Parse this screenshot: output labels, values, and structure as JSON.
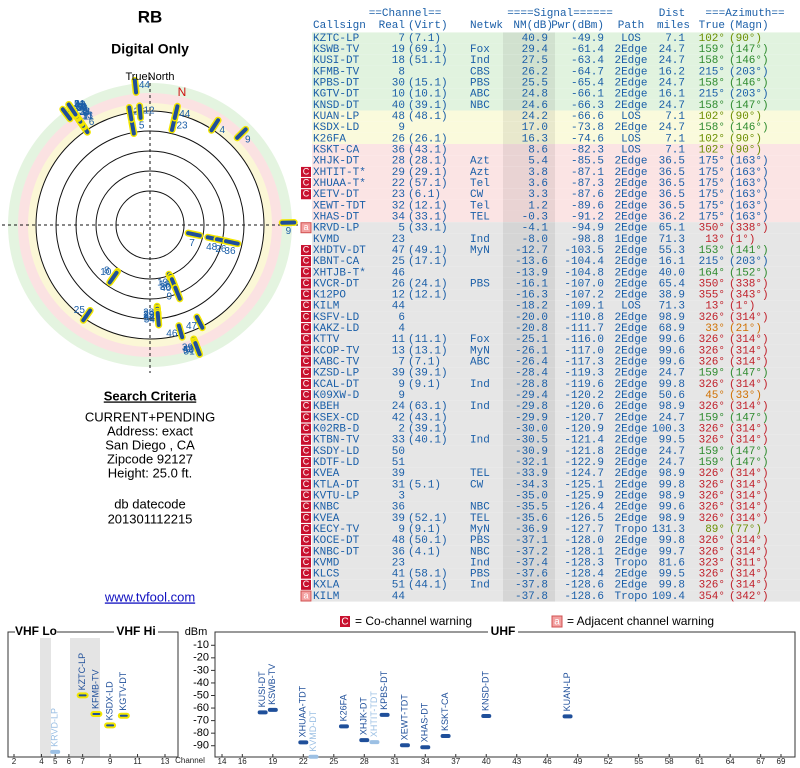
{
  "header": {
    "title": "RB",
    "subtitle": "Digital Only",
    "north_label": "TrueNorth",
    "north_mark": "N"
  },
  "table": {
    "header_groups": [
      "==Channel==",
      "====Signal======",
      "Dist",
      "===Azimuth=="
    ],
    "columns": [
      "Callsign",
      "Real",
      "(Virt)",
      "Netwk",
      "NM(dB)",
      "Pwr(dBm)",
      "Path",
      "miles",
      "True",
      "(Magn)"
    ],
    "rows": [
      [
        null,
        "KZTC-LP",
        "7",
        "(7.1)",
        null,
        "40.9",
        "-49.9",
        "LOS",
        "7.1",
        "102°",
        "(90°)"
      ],
      [
        null,
        "KSWB-TV",
        "19",
        "(69.1)",
        "Fox",
        "29.4",
        "-61.4",
        "2Edge",
        "24.7",
        "159°",
        "(147°)"
      ],
      [
        null,
        "KUSI-DT",
        "18",
        "(51.1)",
        "Ind",
        "27.5",
        "-63.4",
        "2Edge",
        "24.7",
        "158°",
        "(146°)"
      ],
      [
        null,
        "KFMB-TV",
        "8",
        null,
        "CBS",
        "26.2",
        "-64.7",
        "2Edge",
        "16.2",
        "215°",
        "(203°)"
      ],
      [
        null,
        "KPBS-DT",
        "30",
        "(15.1)",
        "PBS",
        "25.5",
        "-65.4",
        "2Edge",
        "24.7",
        "158°",
        "(146°)"
      ],
      [
        null,
        "KGTV-DT",
        "10",
        "(10.1)",
        "ABC",
        "24.8",
        "-66.1",
        "2Edge",
        "16.1",
        "215°",
        "(203°)"
      ],
      [
        null,
        "KNSD-DT",
        "40",
        "(39.1)",
        "NBC",
        "24.6",
        "-66.3",
        "2Edge",
        "24.7",
        "158°",
        "(147°)"
      ],
      [
        null,
        "KUAN-LP",
        "48",
        "(48.1)",
        null,
        "24.2",
        "-66.6",
        "LOS",
        "7.1",
        "102°",
        "(90°)"
      ],
      [
        null,
        "KSDX-LD",
        "9",
        null,
        null,
        "17.0",
        "-73.8",
        "2Edge",
        "24.7",
        "158°",
        "(146°)"
      ],
      [
        null,
        "K26FA",
        "26",
        "(26.1)",
        null,
        "16.3",
        "-74.6",
        "LOS",
        "7.1",
        "102°",
        "(90°)"
      ],
      [
        null,
        "KSKT-CA",
        "36",
        "(43.1)",
        null,
        "8.6",
        "-82.3",
        "LOS",
        "7.1",
        "102°",
        "(90°)"
      ],
      [
        null,
        "XHJK-DT",
        "28",
        "(28.1)",
        "Azt",
        "5.4",
        "-85.5",
        "2Edge",
        "36.5",
        "175°",
        "(163°)"
      ],
      [
        "C",
        "XHTIT-T*",
        "29",
        "(29.1)",
        "Azt",
        "3.8",
        "-87.1",
        "2Edge",
        "36.5",
        "175°",
        "(163°)"
      ],
      [
        "C",
        "XHUAA-T*",
        "22",
        "(57.1)",
        "Tel",
        "3.6",
        "-87.3",
        "2Edge",
        "36.5",
        "175°",
        "(163°)"
      ],
      [
        "C",
        "XETV-DT",
        "23",
        "(6.1)",
        "CW",
        "3.3",
        "-87.6",
        "2Edge",
        "36.5",
        "175°",
        "(163°)"
      ],
      [
        null,
        "XEWT-TDT",
        "32",
        "(12.1)",
        "Tel",
        "1.2",
        "-89.6",
        "2Edge",
        "36.5",
        "175°",
        "(163°)"
      ],
      [
        null,
        "XHAS-DT",
        "34",
        "(33.1)",
        "TEL",
        "-0.3",
        "-91.2",
        "2Edge",
        "36.2",
        "175°",
        "(163°)"
      ],
      [
        "a",
        "KRVD-LP",
        "5",
        "(33.1)",
        null,
        "-4.1",
        "-94.9",
        "2Edge",
        "65.1",
        "350°",
        "(338°)"
      ],
      [
        null,
        "KVMD",
        "23",
        null,
        "Ind",
        "-8.0",
        "-98.8",
        "1Edge",
        "71.3",
        "13°",
        "(1°)"
      ],
      [
        "C",
        "XHDTV-DT",
        "47",
        "(49.1)",
        "MyN",
        "-12.7",
        "-103.5",
        "2Edge",
        "55.3",
        "153°",
        "(141°)"
      ],
      [
        "C",
        "KBNT-CA",
        "25",
        "(17.1)",
        null,
        "-13.6",
        "-104.4",
        "2Edge",
        "16.1",
        "215°",
        "(203°)"
      ],
      [
        "C",
        "XHTJB-T*",
        "46",
        null,
        null,
        "-13.9",
        "-104.8",
        "2Edge",
        "40.0",
        "164°",
        "(152°)"
      ],
      [
        "C",
        "KVCR-DT",
        "26",
        "(24.1)",
        "PBS",
        "-16.1",
        "-107.0",
        "2Edge",
        "65.4",
        "350°",
        "(338°)"
      ],
      [
        "C",
        "K12PO",
        "12",
        "(12.1)",
        null,
        "-16.3",
        "-107.2",
        "2Edge",
        "38.9",
        "355°",
        "(343°)"
      ],
      [
        "C",
        "KILM",
        "44",
        null,
        null,
        "-18.2",
        "-109.1",
        "LOS",
        "71.3",
        "13°",
        "(1°)"
      ],
      [
        "C",
        "KSFV-LD",
        "6",
        null,
        null,
        "-20.0",
        "-110.8",
        "2Edge",
        "98.9",
        "326°",
        "(314°)"
      ],
      [
        "C",
        "KAKZ-LD",
        "4",
        null,
        null,
        "-20.8",
        "-111.7",
        "2Edge",
        "68.9",
        "33°",
        "(21°)"
      ],
      [
        "C",
        "KTTV",
        "11",
        "(11.1)",
        "Fox",
        "-25.1",
        "-116.0",
        "2Edge",
        "99.6",
        "326°",
        "(314°)"
      ],
      [
        "C",
        "KCOP-TV",
        "13",
        "(13.1)",
        "MyN",
        "-26.1",
        "-117.0",
        "2Edge",
        "99.6",
        "326°",
        "(314°)"
      ],
      [
        "C",
        "KABC-TV",
        "7",
        "(7.1)",
        "ABC",
        "-26.4",
        "-117.3",
        "2Edge",
        "99.6",
        "326°",
        "(314°)"
      ],
      [
        "C",
        "KZSD-LP",
        "39",
        "(39.1)",
        null,
        "-28.4",
        "-119.3",
        "2Edge",
        "24.7",
        "159°",
        "(147°)"
      ],
      [
        "C",
        "KCAL-DT",
        "9",
        "(9.1)",
        "Ind",
        "-28.8",
        "-119.6",
        "2Edge",
        "99.8",
        "326°",
        "(314°)"
      ],
      [
        "C",
        "K09XW-D",
        "9",
        null,
        null,
        "-29.4",
        "-120.2",
        "2Edge",
        "50.6",
        "45°",
        "(33°)"
      ],
      [
        "C",
        "KBEH",
        "24",
        "(63.1)",
        "Ind",
        "-29.8",
        "-120.6",
        "2Edge",
        "98.9",
        "326°",
        "(314°)"
      ],
      [
        "C",
        "KSEX-CD",
        "42",
        "(43.1)",
        null,
        "-29.9",
        "-120.7",
        "2Edge",
        "24.7",
        "159°",
        "(147°)"
      ],
      [
        "C",
        "K02RB-D",
        "2",
        "(39.1)",
        null,
        "-30.0",
        "-120.9",
        "2Edge",
        "100.3",
        "326°",
        "(314°)"
      ],
      [
        "C",
        "KTBN-TV",
        "33",
        "(40.1)",
        "Ind",
        "-30.5",
        "-121.4",
        "2Edge",
        "99.5",
        "326°",
        "(314°)"
      ],
      [
        "C",
        "KSDY-LD",
        "50",
        null,
        null,
        "-30.9",
        "-121.8",
        "2Edge",
        "24.7",
        "159°",
        "(147°)"
      ],
      [
        "C",
        "KDTF-LD",
        "51",
        null,
        null,
        "-32.1",
        "-122.9",
        "2Edge",
        "24.7",
        "159°",
        "(147°)"
      ],
      [
        "C",
        "KVEA",
        "39",
        null,
        "TEL",
        "-33.9",
        "-124.7",
        "2Edge",
        "98.9",
        "326°",
        "(314°)"
      ],
      [
        "C",
        "KTLA-DT",
        "31",
        "(5.1)",
        "CW",
        "-34.3",
        "-125.1",
        "2Edge",
        "99.8",
        "326°",
        "(314°)"
      ],
      [
        "C",
        "KVTU-LP",
        "3",
        null,
        null,
        "-35.0",
        "-125.9",
        "2Edge",
        "98.9",
        "326°",
        "(314°)"
      ],
      [
        "C",
        "KNBC",
        "36",
        null,
        "NBC",
        "-35.5",
        "-126.4",
        "2Edge",
        "99.6",
        "326°",
        "(314°)"
      ],
      [
        "C",
        "KVEA",
        "39",
        "(52.1)",
        "TEL",
        "-35.6",
        "-126.5",
        "2Edge",
        "98.9",
        "326°",
        "(314°)"
      ],
      [
        "C",
        "KECY-TV",
        "9",
        "(9.1)",
        "MyN",
        "-36.9",
        "-127.7",
        "Tropo",
        "131.3",
        "89°",
        "(77°)"
      ],
      [
        "C",
        "KOCE-DT",
        "48",
        "(50.1)",
        "PBS",
        "-37.1",
        "-128.0",
        "2Edge",
        "99.8",
        "326°",
        "(314°)"
      ],
      [
        "C",
        "KNBC-DT",
        "36",
        "(4.1)",
        "NBC",
        "-37.2",
        "-128.1",
        "2Edge",
        "99.7",
        "326°",
        "(314°)"
      ],
      [
        "C",
        "KVMD",
        "23",
        null,
        "Ind",
        "-37.4",
        "-128.3",
        "Tropo",
        "81.6",
        "323°",
        "(311°)"
      ],
      [
        "C",
        "KLCS",
        "41",
        "(58.1)",
        "PBS",
        "-37.6",
        "-128.4",
        "2Edge",
        "99.5",
        "326°",
        "(314°)"
      ],
      [
        "C",
        "KXLA",
        "51",
        "(44.1)",
        "Ind",
        "-37.8",
        "-128.6",
        "2Edge",
        "99.8",
        "326°",
        "(314°)"
      ],
      [
        "a",
        "KILM",
        "44",
        null,
        null,
        "-37.8",
        "-128.6",
        "Tropo",
        "109.4",
        "354°",
        "(342°)"
      ]
    ]
  },
  "search": {
    "title": "Search Criteria",
    "lines": [
      "CURRENT+PENDING",
      "Address: exact",
      "San Diego , CA",
      "Zipcode 92127",
      "Height: 25.0 ft."
    ],
    "db": [
      "db datecode",
      "201301112215"
    ],
    "link": "www.tvfool.com"
  },
  "legend": {
    "co_flag": "C",
    "co_text": "= Co-channel warning",
    "adj_flag": "a",
    "adj_text": "= Adjacent channel warning"
  },
  "chart_data": [
    {
      "type": "spectrum",
      "band_labels": [
        "VHF Lo",
        "VHF Hi"
      ],
      "x_label": "Channel",
      "xlim": [
        2,
        13
      ],
      "xticks": [
        2,
        4,
        5,
        6,
        7,
        9,
        11,
        13
      ],
      "ylim": [
        -95,
        -5
      ],
      "x": [
        5,
        7,
        8,
        9,
        10
      ],
      "values": [
        -94.9,
        -49.9,
        -64.7,
        -73.8,
        -66.1
      ],
      "labels": [
        "KRVD-LP",
        "KZTC-LP",
        "KFMB-TV",
        "KSDX-LD",
        "KGTV-DT"
      ],
      "colors": [
        "#9cc0e4",
        "#1f4f9a",
        "#1f4f9a",
        "#1f4f9a",
        "#1f4f9a"
      ],
      "marker_outline": "#f2e600"
    },
    {
      "type": "spectrum",
      "title": "UHF",
      "y_label": "dBm",
      "xlim": [
        14,
        69
      ],
      "xticks": [
        14,
        16,
        19,
        22,
        25,
        28,
        31,
        34,
        37,
        40,
        43,
        46,
        49,
        52,
        55,
        58,
        61,
        64,
        67,
        69
      ],
      "ylim": [
        -95,
        -5
      ],
      "yticks": [
        -10,
        -20,
        -30,
        -40,
        -50,
        -60,
        -70,
        -80,
        -90
      ],
      "x": [
        18,
        19,
        22,
        23,
        26,
        28,
        29,
        30,
        32,
        34,
        36,
        40,
        48
      ],
      "values": [
        -63.4,
        -61.4,
        -87.3,
        -98.8,
        -74.6,
        -85.5,
        -87.1,
        -65.4,
        -89.6,
        -91.2,
        -82.3,
        -66.3,
        -66.6
      ],
      "labels": [
        "KUSI-DT",
        "KSWB-TV",
        "XHUAA-TDT",
        "KVMD-DT",
        "K26FA",
        "XHJK-DT",
        "XHTIT-TDT",
        "KPBS-DT",
        "XEWT-TDT",
        "XHAS-DT",
        "KSKT-CA",
        "KNSD-DT",
        "KUAN-LP"
      ],
      "colors": [
        "#1f4f9a",
        "#1f4f9a",
        "#1f4f9a",
        "#9cc0e4",
        "#1f4f9a",
        "#1f4f9a",
        "#9cc0e4",
        "#1f4f9a",
        "#1f4f9a",
        "#1f4f9a",
        "#1f4f9a",
        "#1f4f9a",
        "#1f4f9a"
      ]
    }
  ]
}
